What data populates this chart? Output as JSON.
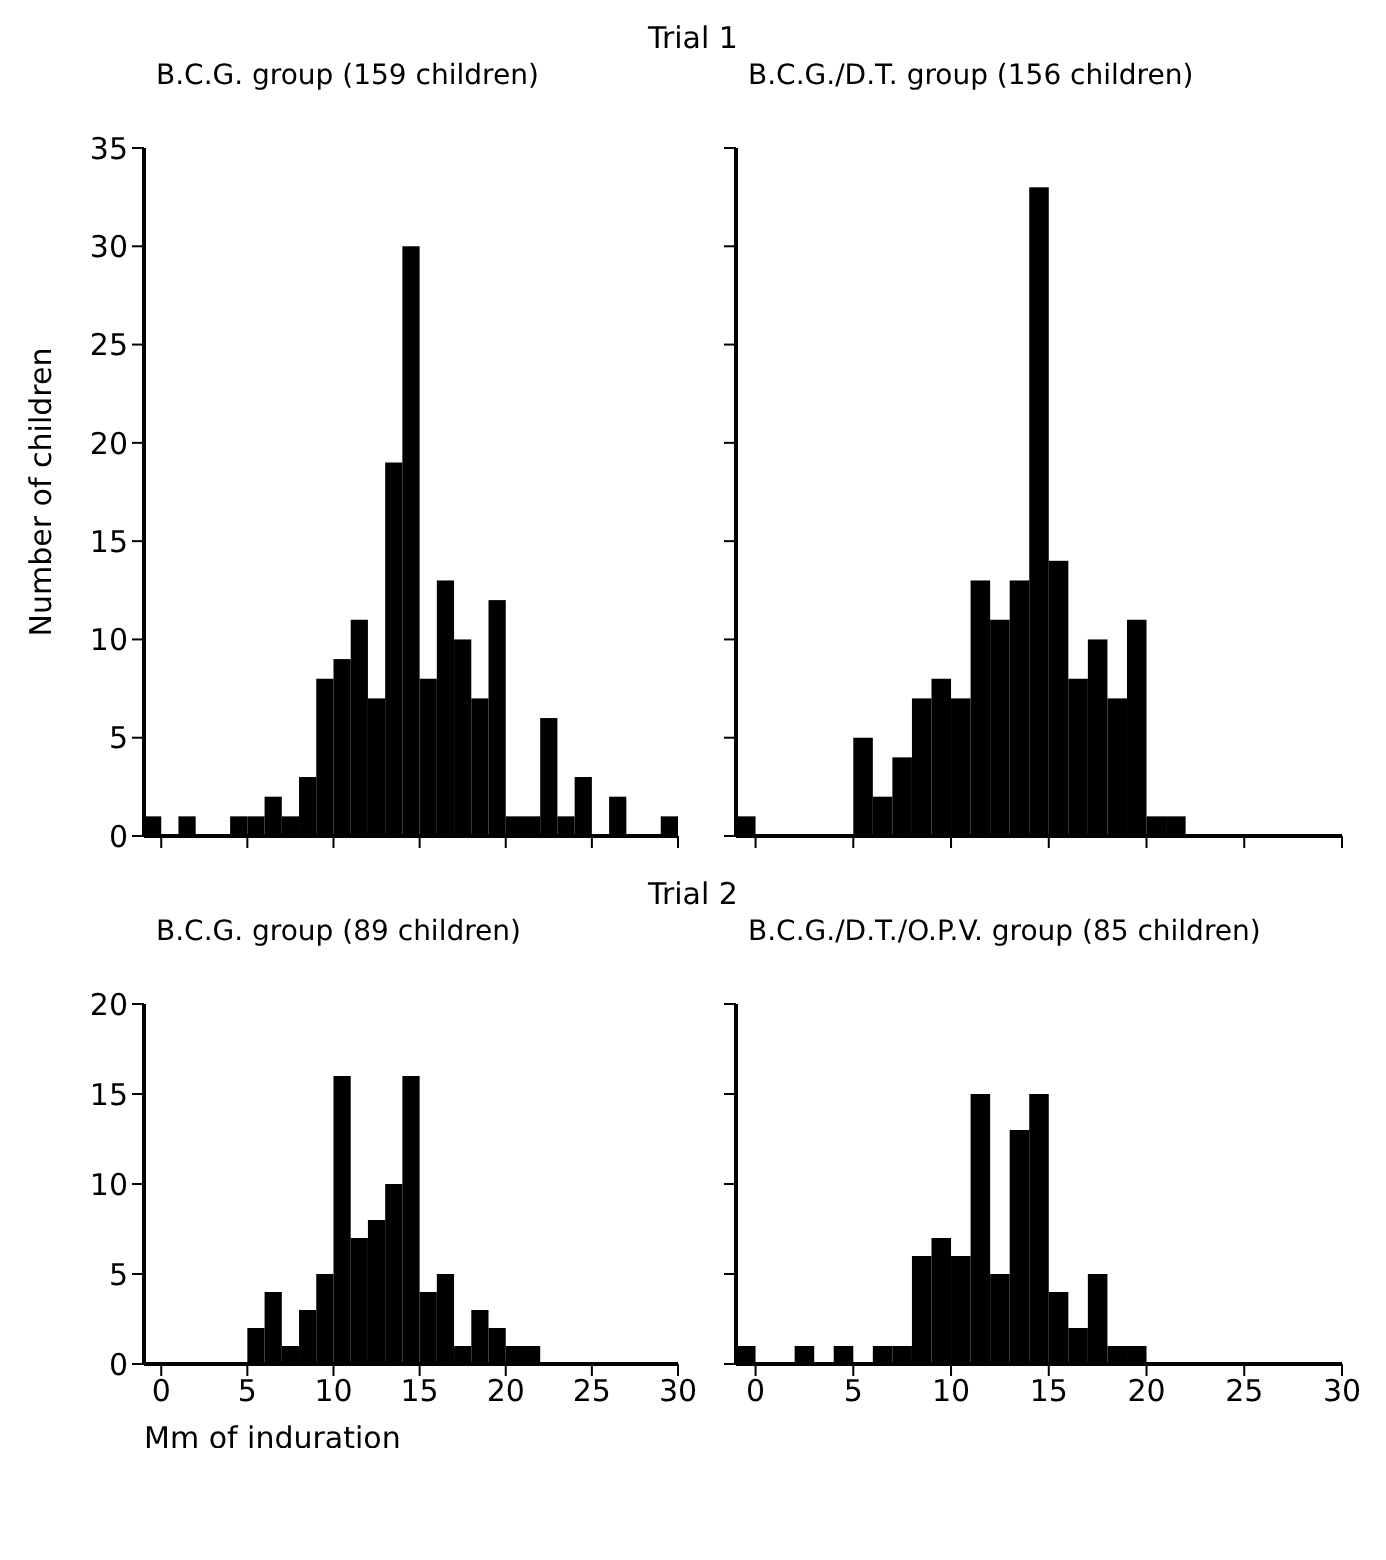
{
  "chart_data": [
    {
      "type": "histogram",
      "title": "Trial 1",
      "subtitle": "B.C.G. group (159 children)",
      "ylabel": "Number of children",
      "color": "#000000",
      "bins": [
        -1,
        0,
        1,
        2,
        3,
        4,
        5,
        6,
        7,
        8,
        9,
        10,
        11,
        12,
        13,
        14,
        15,
        16,
        17,
        18,
        19,
        20,
        21,
        22,
        23,
        24,
        25,
        26,
        27,
        28,
        29,
        30
      ],
      "values": [
        1,
        0,
        1,
        0,
        0,
        1,
        1,
        2,
        1,
        3,
        8,
        9,
        11,
        7,
        19,
        30,
        8,
        13,
        10,
        7,
        12,
        1,
        1,
        6,
        1,
        3,
        0,
        2,
        0,
        0,
        1
      ],
      "xlim": [
        -1,
        30
      ],
      "xticks": [
        0,
        5,
        10,
        15,
        20,
        25,
        30
      ],
      "ylim": [
        0,
        35
      ],
      "yticks": [
        0,
        5,
        10,
        15,
        20,
        25,
        30,
        35
      ],
      "tick_labels": "y"
    },
    {
      "type": "histogram",
      "subtitle": "B.C.G./D.T. group (156 children)",
      "color": "#000000",
      "bins": [
        -1,
        0,
        1,
        2,
        3,
        4,
        5,
        6,
        7,
        8,
        9,
        10,
        11,
        12,
        13,
        14,
        15,
        16,
        17,
        18,
        19,
        20,
        21,
        22,
        23,
        24,
        25,
        26,
        27,
        28,
        29,
        30
      ],
      "values": [
        1,
        0,
        0,
        0,
        0,
        0,
        5,
        2,
        4,
        7,
        8,
        7,
        13,
        11,
        13,
        33,
        14,
        8,
        10,
        7,
        11,
        1,
        1,
        0,
        0,
        0,
        0,
        0,
        0,
        0,
        0
      ],
      "xlim": [
        -1,
        30
      ],
      "xticks": [
        0,
        5,
        10,
        15,
        20,
        25,
        30
      ],
      "ylim": [
        0,
        35
      ],
      "yticks": [
        0,
        5,
        10,
        15,
        20,
        25,
        30,
        35
      ],
      "tick_labels": false
    },
    {
      "type": "histogram",
      "title": "Trial 2",
      "subtitle": "B.C.G. group (89 children)",
      "xlabel": "Mm of induration",
      "color": "#000000",
      "bins": [
        -1,
        0,
        1,
        2,
        3,
        4,
        5,
        6,
        7,
        8,
        9,
        10,
        11,
        12,
        13,
        14,
        15,
        16,
        17,
        18,
        19,
        20,
        21,
        22,
        23,
        24,
        25,
        26,
        27,
        28,
        29,
        30
      ],
      "values": [
        0,
        0,
        0,
        0,
        0,
        0,
        2,
        4,
        1,
        3,
        5,
        16,
        7,
        8,
        10,
        16,
        4,
        5,
        1,
        3,
        2,
        1,
        1,
        0,
        0,
        0,
        0,
        0,
        0,
        0,
        0
      ],
      "xlim": [
        -1,
        30
      ],
      "xticks": [
        0,
        5,
        10,
        15,
        20,
        25,
        30
      ],
      "ylim": [
        0,
        20
      ],
      "yticks": [
        0,
        5,
        10,
        15,
        20
      ]
    },
    {
      "type": "histogram",
      "subtitle": "B.C.G./D.T./O.P.V. group (85 children)",
      "color": "#000000",
      "bins": [
        -1,
        0,
        1,
        2,
        3,
        4,
        5,
        6,
        7,
        8,
        9,
        10,
        11,
        12,
        13,
        14,
        15,
        16,
        17,
        18,
        19,
        20,
        21,
        22,
        23,
        24,
        25,
        26,
        27,
        28,
        29,
        30
      ],
      "values": [
        1,
        0,
        0,
        1,
        0,
        1,
        0,
        1,
        1,
        6,
        7,
        6,
        15,
        5,
        13,
        15,
        4,
        2,
        5,
        1,
        1,
        0,
        0,
        0,
        0,
        0,
        0,
        0,
        0,
        0,
        0
      ],
      "xlim": [
        -1,
        30
      ],
      "xticks": [
        0,
        5,
        10,
        15,
        20,
        25,
        30
      ],
      "ylim": [
        0,
        20
      ],
      "yticks": [
        0,
        5,
        10,
        15,
        20
      ],
      "tick_labels": "x"
    }
  ]
}
